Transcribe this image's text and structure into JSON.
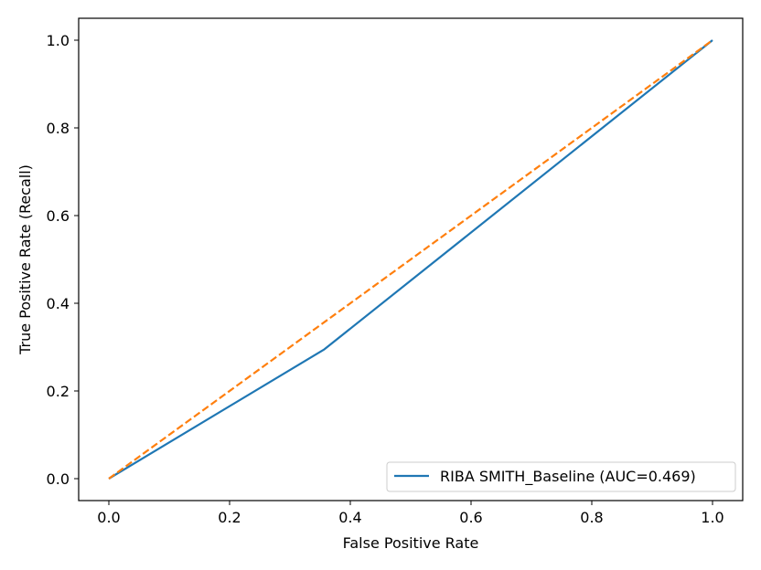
{
  "chart_data": {
    "type": "line",
    "title": "",
    "xlabel": "False Positive Rate",
    "ylabel": "True Positive Rate (Recall)",
    "xlim": [
      -0.05,
      1.05
    ],
    "ylim": [
      -0.05,
      1.05
    ],
    "xticks": [
      "0.0",
      "0.2",
      "0.4",
      "0.6",
      "0.8",
      "1.0"
    ],
    "yticks": [
      "0.0",
      "0.2",
      "0.4",
      "0.6",
      "0.8",
      "1.0"
    ],
    "grid": false,
    "legend_position": "lower-right",
    "series": [
      {
        "name": "RIBA SMITH_Baseline (AUC=0.469)",
        "color": "#1f77b4",
        "style": "solid",
        "x": [
          0.0,
          0.357,
          1.0
        ],
        "y": [
          0.0,
          0.295,
          1.0
        ]
      },
      {
        "color": "#ff7f0e",
        "style": "dashed",
        "x": [
          0.0,
          1.0
        ],
        "y": [
          0.0,
          1.0
        ]
      }
    ]
  }
}
